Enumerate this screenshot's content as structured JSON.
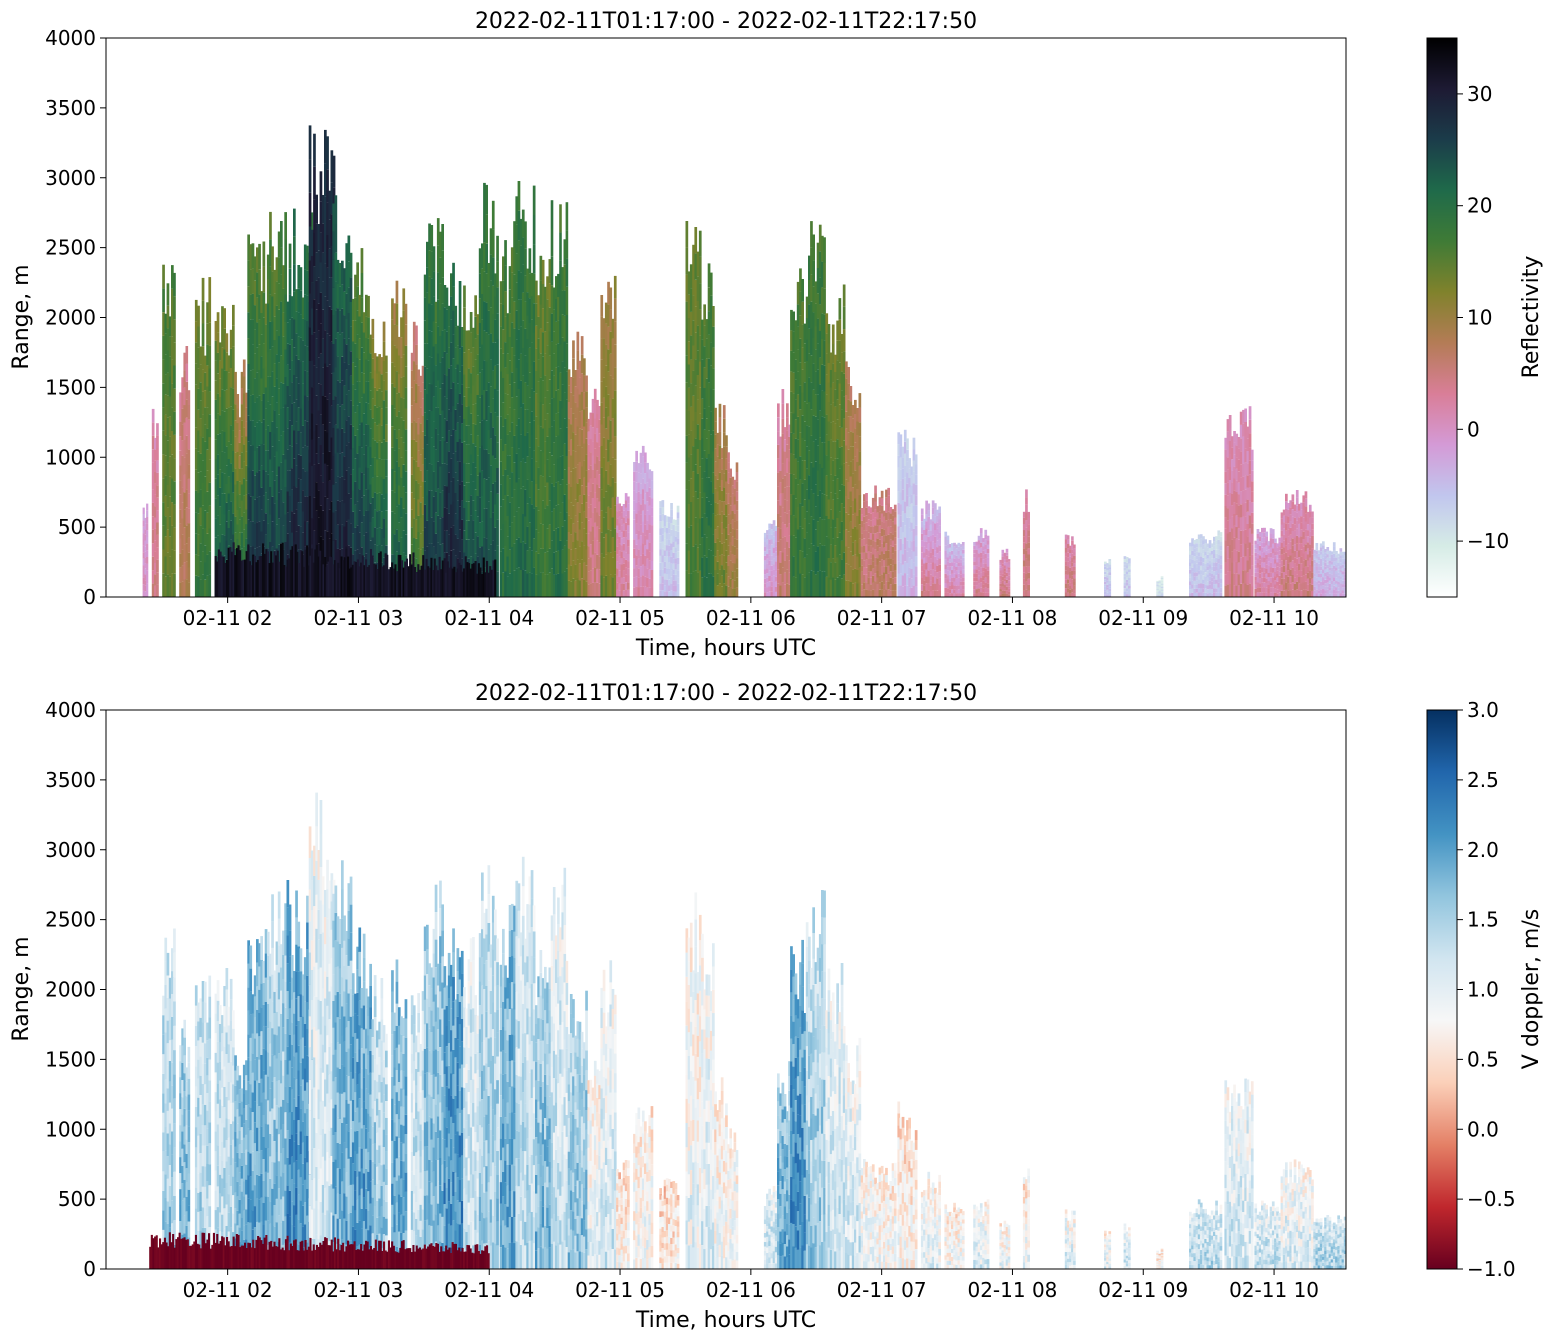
{
  "chart_data": [
    {
      "type": "heatmap",
      "title": "2022-02-11T01:17:00 - 2022-02-11T22:17:50",
      "xlabel": "Time, hours UTC",
      "ylabel": "Range, m",
      "xticks": [
        "02-11 02",
        "02-11 03",
        "02-11 04",
        "02-11 05",
        "02-11 06",
        "02-11 07",
        "02-11 08",
        "02-11 09",
        "02-11 10"
      ],
      "x_tick_hours": [
        2,
        3,
        4,
        5,
        6,
        7,
        8,
        9,
        10
      ],
      "xlim_hours": [
        1.07,
        10.55
      ],
      "yticks": [
        0,
        500,
        1000,
        1500,
        2000,
        2500,
        3000,
        3500,
        4000
      ],
      "ylim": [
        0,
        4000
      ],
      "grid": false,
      "colorbar": {
        "label": "Reflectivity",
        "range": [
          -15,
          35
        ],
        "ticks": [
          -10,
          0,
          10,
          20,
          30
        ],
        "tick_labels": [
          "−10",
          "0",
          "10",
          "20",
          "30"
        ],
        "colors": [
          "#ffffff",
          "#d6ece6",
          "#c1c6ee",
          "#d49ad6",
          "#d97e98",
          "#b47c56",
          "#80822c",
          "#3f7b36",
          "#1f6a4a",
          "#1b3c4a",
          "#1d1a33",
          "#000000"
        ]
      },
      "cells": [
        {
          "t": 1.35,
          "dt": 0.04,
          "top": 700,
          "zb": 0,
          "zt": -2
        },
        {
          "t": 1.42,
          "dt": 0.05,
          "top": 1400,
          "zb": 5,
          "zt": 2
        },
        {
          "t": 1.5,
          "dt": 0.1,
          "top": 2500,
          "zb": 14,
          "zt": 16
        },
        {
          "t": 1.63,
          "dt": 0.08,
          "top": 1800,
          "zb": 8,
          "zt": 4
        },
        {
          "t": 1.75,
          "dt": 0.12,
          "top": 2300,
          "zb": 18,
          "zt": 14
        },
        {
          "t": 1.9,
          "dt": 0.15,
          "top": 2200,
          "zb": 25,
          "zt": 13
        },
        {
          "t": 2.05,
          "dt": 0.1,
          "top": 1700,
          "zb": 22,
          "zt": 8
        },
        {
          "t": 2.15,
          "dt": 0.15,
          "top": 2600,
          "zb": 28,
          "zt": 15
        },
        {
          "t": 2.3,
          "dt": 0.15,
          "top": 2800,
          "zb": 27,
          "zt": 16
        },
        {
          "t": 2.45,
          "dt": 0.2,
          "top": 2800,
          "zb": 30,
          "zt": 20
        },
        {
          "t": 2.62,
          "dt": 0.2,
          "top": 3500,
          "zb": 32,
          "zt": 28
        },
        {
          "t": 2.8,
          "dt": 0.15,
          "top": 3000,
          "zb": 30,
          "zt": 22
        },
        {
          "t": 2.95,
          "dt": 0.15,
          "top": 2500,
          "zb": 28,
          "zt": 15
        },
        {
          "t": 3.1,
          "dt": 0.12,
          "top": 2200,
          "zb": 26,
          "zt": 12
        },
        {
          "t": 3.25,
          "dt": 0.12,
          "top": 2300,
          "zb": 24,
          "zt": 10
        },
        {
          "t": 3.4,
          "dt": 0.1,
          "top": 2000,
          "zb": 18,
          "zt": 6
        },
        {
          "t": 3.5,
          "dt": 0.15,
          "top": 2800,
          "zb": 26,
          "zt": 18
        },
        {
          "t": 3.65,
          "dt": 0.15,
          "top": 2500,
          "zb": 30,
          "zt": 20
        },
        {
          "t": 3.8,
          "dt": 0.12,
          "top": 2400,
          "zb": 25,
          "zt": 14
        },
        {
          "t": 3.92,
          "dt": 0.15,
          "top": 3000,
          "zb": 24,
          "zt": 18
        },
        {
          "t": 4.08,
          "dt": 0.12,
          "top": 2700,
          "zb": 20,
          "zt": 16
        },
        {
          "t": 4.2,
          "dt": 0.15,
          "top": 3000,
          "zb": 21,
          "zt": 18
        },
        {
          "t": 4.35,
          "dt": 0.12,
          "top": 2500,
          "zb": 18,
          "zt": 14
        },
        {
          "t": 4.47,
          "dt": 0.13,
          "top": 2900,
          "zb": 20,
          "zt": 17
        },
        {
          "t": 4.6,
          "dt": 0.15,
          "top": 2000,
          "zb": 12,
          "zt": 8
        },
        {
          "t": 4.75,
          "dt": 0.1,
          "top": 1500,
          "zb": 5,
          "zt": 3
        },
        {
          "t": 4.85,
          "dt": 0.12,
          "top": 2300,
          "zb": 14,
          "zt": 10
        },
        {
          "t": 4.97,
          "dt": 0.1,
          "top": 800,
          "zb": 3,
          "zt": 0
        },
        {
          "t": 5.1,
          "dt": 0.15,
          "top": 1200,
          "zb": 2,
          "zt": -3
        },
        {
          "t": 5.3,
          "dt": 0.15,
          "top": 700,
          "zb": -5,
          "zt": -8
        },
        {
          "t": 5.5,
          "dt": 0.12,
          "top": 2700,
          "zb": 16,
          "zt": 14
        },
        {
          "t": 5.62,
          "dt": 0.1,
          "top": 2400,
          "zb": 20,
          "zt": 16
        },
        {
          "t": 5.72,
          "dt": 0.1,
          "top": 1400,
          "zb": 14,
          "zt": 8
        },
        {
          "t": 5.82,
          "dt": 0.08,
          "top": 1100,
          "zb": 10,
          "zt": 6
        },
        {
          "t": 6.1,
          "dt": 0.1,
          "top": 600,
          "zb": 0,
          "zt": -5
        },
        {
          "t": 6.2,
          "dt": 0.12,
          "top": 1500,
          "zb": 6,
          "zt": 3
        },
        {
          "t": 6.3,
          "dt": 0.12,
          "top": 2400,
          "zb": 18,
          "zt": 16
        },
        {
          "t": 6.42,
          "dt": 0.15,
          "top": 2800,
          "zb": 20,
          "zt": 17
        },
        {
          "t": 6.57,
          "dt": 0.15,
          "top": 2300,
          "zb": 17,
          "zt": 14
        },
        {
          "t": 6.72,
          "dt": 0.12,
          "top": 1700,
          "zb": 12,
          "zt": 8
        },
        {
          "t": 6.84,
          "dt": 0.12,
          "top": 800,
          "zb": 6,
          "zt": 4
        },
        {
          "t": 6.96,
          "dt": 0.15,
          "top": 800,
          "zb": 7,
          "zt": 5
        },
        {
          "t": 7.12,
          "dt": 0.15,
          "top": 1200,
          "zb": -4,
          "zt": -7
        },
        {
          "t": 7.3,
          "dt": 0.15,
          "top": 700,
          "zb": 4,
          "zt": -4
        },
        {
          "t": 7.48,
          "dt": 0.15,
          "top": 500,
          "zb": 2,
          "zt": -5
        },
        {
          "t": 7.7,
          "dt": 0.12,
          "top": 500,
          "zb": 4,
          "zt": -2
        },
        {
          "t": 7.9,
          "dt": 0.08,
          "top": 350,
          "zb": 5,
          "zt": 0
        },
        {
          "t": 8.08,
          "dt": 0.05,
          "top": 800,
          "zb": 5,
          "zt": 3
        },
        {
          "t": 8.4,
          "dt": 0.08,
          "top": 450,
          "zb": 5,
          "zt": 2
        },
        {
          "t": 8.7,
          "dt": 0.05,
          "top": 300,
          "zb": -5,
          "zt": -8
        },
        {
          "t": 8.85,
          "dt": 0.05,
          "top": 350,
          "zb": -6,
          "zt": -8
        },
        {
          "t": 9.1,
          "dt": 0.05,
          "top": 150,
          "zb": -8,
          "zt": -10
        },
        {
          "t": 9.35,
          "dt": 0.25,
          "top": 500,
          "zb": -5,
          "zt": -8
        },
        {
          "t": 9.62,
          "dt": 0.22,
          "top": 1400,
          "zb": 4,
          "zt": 1
        },
        {
          "t": 9.85,
          "dt": 0.2,
          "top": 500,
          "zb": 3,
          "zt": -2
        },
        {
          "t": 10.05,
          "dt": 0.25,
          "top": 800,
          "zb": 5,
          "zt": 1
        },
        {
          "t": 10.3,
          "dt": 0.25,
          "top": 400,
          "zb": -3,
          "zt": -6
        }
      ],
      "low_layer": {
        "t0": 1.9,
        "t1": 4.05,
        "top": 430,
        "z": 32
      }
    },
    {
      "type": "heatmap",
      "title": "2022-02-11T01:17:00 - 2022-02-11T22:17:50",
      "xlabel": "Time, hours UTC",
      "ylabel": "Range, m",
      "xticks": [
        "02-11 02",
        "02-11 03",
        "02-11 04",
        "02-11 05",
        "02-11 06",
        "02-11 07",
        "02-11 08",
        "02-11 09",
        "02-11 10"
      ],
      "x_tick_hours": [
        2,
        3,
        4,
        5,
        6,
        7,
        8,
        9,
        10
      ],
      "xlim_hours": [
        1.07,
        10.55
      ],
      "yticks": [
        0,
        500,
        1000,
        1500,
        2000,
        2500,
        3000,
        3500,
        4000
      ],
      "ylim": [
        0,
        4000
      ],
      "grid": false,
      "colorbar": {
        "label": "V doppler, m/s",
        "range": [
          -1.0,
          3.0
        ],
        "ticks": [
          -1.0,
          -0.5,
          0.0,
          0.5,
          1.0,
          1.5,
          2.0,
          2.5,
          3.0
        ],
        "tick_labels": [
          "−1.0",
          "−0.5",
          "0.0",
          "0.5",
          "1.0",
          "1.5",
          "2.0",
          "2.5",
          "3.0"
        ],
        "colors": [
          "#67001f",
          "#c0272d",
          "#e48066",
          "#fbd0b9",
          "#f7f7f7",
          "#d1e5f0",
          "#92c5de",
          "#4393c3",
          "#2166ac",
          "#053061"
        ]
      },
      "cells": [
        {
          "t": 1.5,
          "dt": 0.1,
          "top": 2500,
          "v": 1.6
        },
        {
          "t": 1.63,
          "dt": 0.08,
          "top": 1800,
          "v": 1.8
        },
        {
          "t": 1.75,
          "dt": 0.12,
          "top": 2300,
          "v": 1.5
        },
        {
          "t": 1.9,
          "dt": 0.15,
          "top": 2200,
          "v": 1.4
        },
        {
          "t": 2.05,
          "dt": 0.1,
          "top": 1700,
          "v": 1.9
        },
        {
          "t": 2.15,
          "dt": 0.15,
          "top": 2600,
          "v": 2.0
        },
        {
          "t": 2.3,
          "dt": 0.15,
          "top": 2800,
          "v": 1.7
        },
        {
          "t": 2.45,
          "dt": 0.2,
          "top": 2800,
          "v": 2.2
        },
        {
          "t": 2.62,
          "dt": 0.2,
          "top": 3500,
          "v": 1.2
        },
        {
          "t": 2.8,
          "dt": 0.15,
          "top": 3000,
          "v": 1.9
        },
        {
          "t": 2.95,
          "dt": 0.15,
          "top": 2500,
          "v": 2.1
        },
        {
          "t": 3.1,
          "dt": 0.12,
          "top": 2200,
          "v": 1.6
        },
        {
          "t": 3.25,
          "dt": 0.12,
          "top": 2300,
          "v": 2.0
        },
        {
          "t": 3.4,
          "dt": 0.1,
          "top": 2000,
          "v": 1.4
        },
        {
          "t": 3.5,
          "dt": 0.15,
          "top": 2800,
          "v": 1.8
        },
        {
          "t": 3.65,
          "dt": 0.15,
          "top": 2500,
          "v": 2.2
        },
        {
          "t": 3.8,
          "dt": 0.12,
          "top": 2400,
          "v": 1.3
        },
        {
          "t": 3.92,
          "dt": 0.15,
          "top": 3000,
          "v": 1.6
        },
        {
          "t": 4.08,
          "dt": 0.12,
          "top": 2700,
          "v": 2.0
        },
        {
          "t": 4.2,
          "dt": 0.15,
          "top": 3000,
          "v": 1.4
        },
        {
          "t": 4.35,
          "dt": 0.12,
          "top": 2500,
          "v": 1.8
        },
        {
          "t": 4.47,
          "dt": 0.13,
          "top": 2900,
          "v": 1.3
        },
        {
          "t": 4.6,
          "dt": 0.15,
          "top": 2000,
          "v": 1.7
        },
        {
          "t": 4.75,
          "dt": 0.1,
          "top": 1500,
          "v": 1.0
        },
        {
          "t": 4.85,
          "dt": 0.12,
          "top": 2300,
          "v": 1.2
        },
        {
          "t": 4.97,
          "dt": 0.1,
          "top": 800,
          "v": 0.8
        },
        {
          "t": 5.1,
          "dt": 0.15,
          "top": 1200,
          "v": 0.9
        },
        {
          "t": 5.3,
          "dt": 0.15,
          "top": 700,
          "v": 0.7
        },
        {
          "t": 5.5,
          "dt": 0.12,
          "top": 2700,
          "v": 1.0
        },
        {
          "t": 5.62,
          "dt": 0.1,
          "top": 2400,
          "v": 1.1
        },
        {
          "t": 5.72,
          "dt": 0.1,
          "top": 1400,
          "v": 0.9
        },
        {
          "t": 5.82,
          "dt": 0.08,
          "top": 1100,
          "v": 1.0
        },
        {
          "t": 6.1,
          "dt": 0.1,
          "top": 600,
          "v": 1.3
        },
        {
          "t": 6.2,
          "dt": 0.12,
          "top": 1500,
          "v": 1.9
        },
        {
          "t": 6.3,
          "dt": 0.12,
          "top": 2400,
          "v": 2.2
        },
        {
          "t": 6.42,
          "dt": 0.15,
          "top": 2800,
          "v": 1.6
        },
        {
          "t": 6.57,
          "dt": 0.15,
          "top": 2300,
          "v": 1.3
        },
        {
          "t": 6.72,
          "dt": 0.12,
          "top": 1700,
          "v": 1.2
        },
        {
          "t": 6.84,
          "dt": 0.12,
          "top": 800,
          "v": 1.0
        },
        {
          "t": 6.96,
          "dt": 0.15,
          "top": 800,
          "v": 0.9
        },
        {
          "t": 7.12,
          "dt": 0.15,
          "top": 1200,
          "v": 0.8
        },
        {
          "t": 7.3,
          "dt": 0.15,
          "top": 700,
          "v": 1.0
        },
        {
          "t": 7.48,
          "dt": 0.15,
          "top": 500,
          "v": 0.9
        },
        {
          "t": 7.7,
          "dt": 0.12,
          "top": 500,
          "v": 1.1
        },
        {
          "t": 7.9,
          "dt": 0.08,
          "top": 350,
          "v": 1.0
        },
        {
          "t": 8.08,
          "dt": 0.05,
          "top": 800,
          "v": 0.9
        },
        {
          "t": 8.4,
          "dt": 0.08,
          "top": 450,
          "v": 1.1
        },
        {
          "t": 8.7,
          "dt": 0.05,
          "top": 300,
          "v": 1.0
        },
        {
          "t": 8.85,
          "dt": 0.05,
          "top": 350,
          "v": 1.2
        },
        {
          "t": 9.1,
          "dt": 0.05,
          "top": 150,
          "v": 0.8
        },
        {
          "t": 9.35,
          "dt": 0.25,
          "top": 500,
          "v": 1.4
        },
        {
          "t": 9.62,
          "dt": 0.22,
          "top": 1400,
          "v": 1.2
        },
        {
          "t": 9.85,
          "dt": 0.2,
          "top": 500,
          "v": 1.3
        },
        {
          "t": 10.05,
          "dt": 0.25,
          "top": 800,
          "v": 1.1
        },
        {
          "t": 10.3,
          "dt": 0.25,
          "top": 400,
          "v": 1.5
        }
      ],
      "low_layer": {
        "t0": 1.4,
        "t1": 4.0,
        "top": 280,
        "v": -1.0
      }
    }
  ]
}
